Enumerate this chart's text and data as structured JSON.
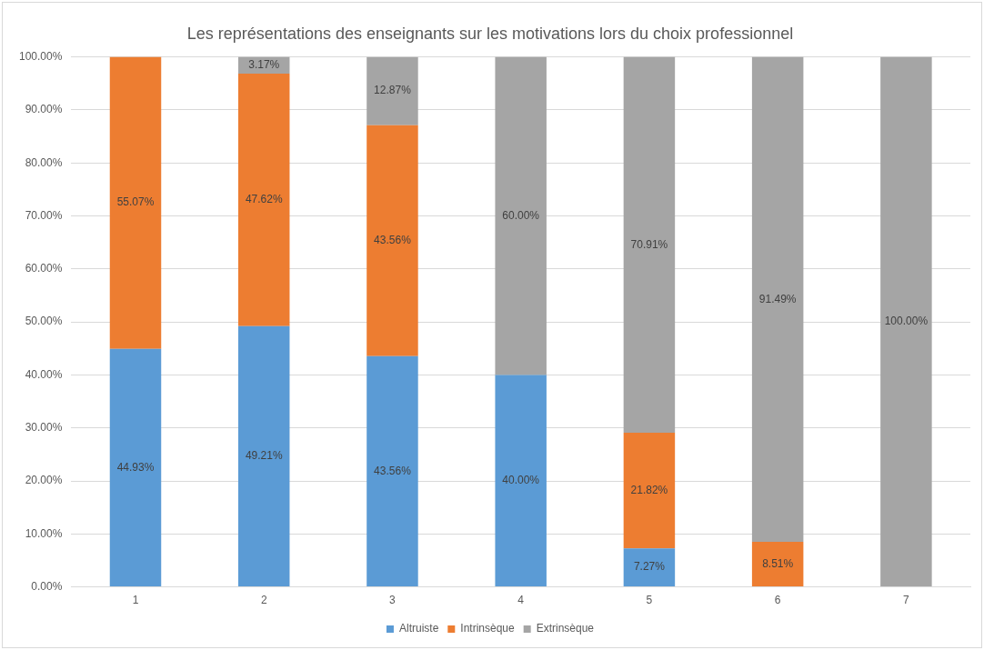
{
  "chart_data": {
    "type": "bar",
    "title": "Les représentations des enseignants sur les motivations lors du choix professionnel",
    "categories": [
      "1",
      "2",
      "3",
      "4",
      "5",
      "6",
      "7"
    ],
    "stacked": true,
    "grid": "y",
    "legend": "bottom",
    "ylim": [
      0,
      100
    ],
    "yticks": [
      {
        "value": 0,
        "label": "0.00%"
      },
      {
        "value": 10,
        "label": "10.00%"
      },
      {
        "value": 20,
        "label": "20.00%"
      },
      {
        "value": 30,
        "label": "30.00%"
      },
      {
        "value": 40,
        "label": "40.00%"
      },
      {
        "value": 50,
        "label": "50.00%"
      },
      {
        "value": 60,
        "label": "60.00%"
      },
      {
        "value": 70,
        "label": "70.00%"
      },
      {
        "value": 80,
        "label": "80.00%"
      },
      {
        "value": 90,
        "label": "90.00%"
      },
      {
        "value": 100,
        "label": "100.00%"
      }
    ],
    "series": [
      {
        "name": "Altruiste",
        "color": "#5b9bd5",
        "values": [
          44.93,
          49.21,
          43.56,
          40.0,
          7.27,
          null,
          null
        ],
        "value_labels": [
          "44.93%",
          "49.21%",
          "43.56%",
          "40.00%",
          "7.27%",
          null,
          null
        ]
      },
      {
        "name": "Intrinsèque",
        "color": "#ed7d31",
        "values": [
          55.07,
          47.62,
          43.56,
          null,
          21.82,
          8.51,
          null
        ],
        "value_labels": [
          "55.07%",
          "47.62%",
          "43.56%",
          null,
          "21.82%",
          "8.51%",
          null
        ]
      },
      {
        "name": "Extrinsèque",
        "color": "#a5a5a5",
        "values": [
          null,
          3.17,
          12.87,
          60.0,
          70.91,
          91.49,
          100.0
        ],
        "value_labels": [
          null,
          "3.17%",
          "12.87%",
          "60.00%",
          "70.91%",
          "91.49%",
          "100.00%"
        ]
      }
    ]
  }
}
